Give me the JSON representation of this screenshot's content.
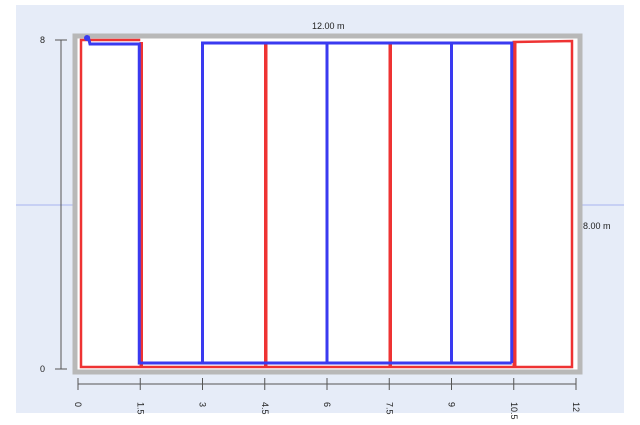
{
  "dimensions": {
    "width_label": "12.00 m",
    "height_label": "8.00 m"
  },
  "y_axis": {
    "ticks": [
      {
        "value": 8,
        "label": "8"
      },
      {
        "value": 0,
        "label": "0"
      }
    ]
  },
  "x_axis": {
    "ticks": [
      {
        "value": 0,
        "label": "0"
      },
      {
        "value": 1.5,
        "label": "1.5"
      },
      {
        "value": 3,
        "label": "3"
      },
      {
        "value": 4.5,
        "label": "4.5"
      },
      {
        "value": 6,
        "label": "6"
      },
      {
        "value": 7.5,
        "label": "7.5"
      },
      {
        "value": 9,
        "label": "9"
      },
      {
        "value": 10.5,
        "label": "10.5"
      },
      {
        "value": 12,
        "label": "12"
      }
    ]
  },
  "plan": {
    "room_width_m": 12,
    "room_height_m": 8,
    "colors": {
      "supply_loop": "#ee3333",
      "return_loop": "#3a3af0",
      "room_outline": "#b8b8b8",
      "crosshair": "#a8b4f0",
      "background": "#e6ecf8"
    },
    "red_runs_x": [
      1.5,
      4.5,
      7.5,
      10.5
    ],
    "blue_runs_x": [
      1.5,
      3,
      6,
      9,
      10.5
    ]
  }
}
